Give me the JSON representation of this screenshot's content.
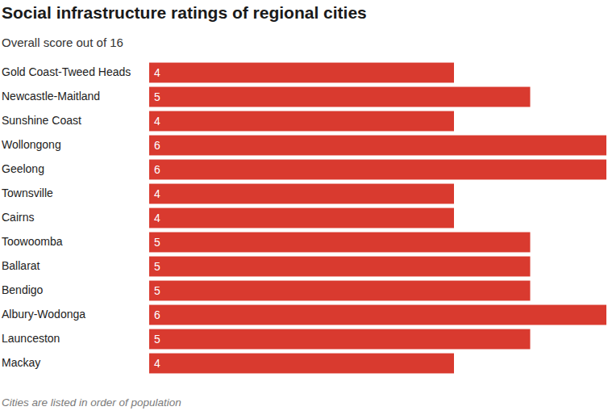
{
  "chart_data": {
    "type": "bar",
    "title": "Social infrastructure ratings of regional cities",
    "subtitle": "Overall score out of 16",
    "caption": "Cities are listed in order of population",
    "orientation": "horizontal",
    "categories": [
      "Gold Coast-Tweed Heads",
      "Newcastle-Maitland",
      "Sunshine Coast",
      "Wollongong",
      "Geelong",
      "Townsville",
      "Cairns",
      "Toowoomba",
      "Ballarat",
      "Bendigo",
      "Albury-Wodonga",
      "Launceston",
      "Mackay"
    ],
    "values": [
      4,
      5,
      4,
      6,
      6,
      4,
      4,
      5,
      5,
      5,
      6,
      5,
      4
    ],
    "color": "#d93a2f",
    "xlim": [
      0,
      6
    ],
    "data_labels": true,
    "tick_labels": false,
    "grid": false
  }
}
